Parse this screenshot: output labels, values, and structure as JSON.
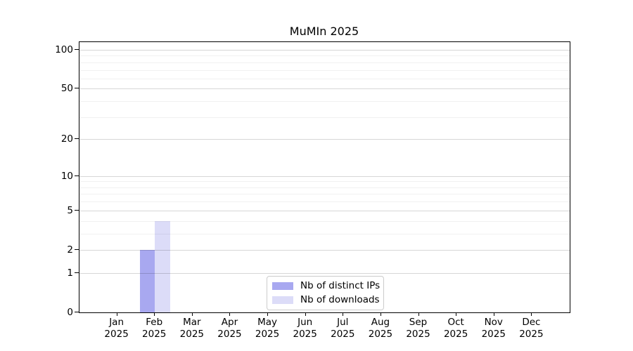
{
  "chart_data": {
    "type": "bar",
    "title": "MuMIn 2025",
    "year": "2025",
    "categories": [
      "Jan",
      "Feb",
      "Mar",
      "Apr",
      "May",
      "Jun",
      "Jul",
      "Aug",
      "Sep",
      "Oct",
      "Nov",
      "Dec"
    ],
    "series": [
      {
        "name": "Nb of distinct IPs",
        "color": "#a8a8f0",
        "values": [
          0,
          2,
          0,
          0,
          0,
          0,
          0,
          0,
          0,
          0,
          0,
          0
        ]
      },
      {
        "name": "Nb of downloads",
        "color": "#dcdcf8",
        "values": [
          0,
          4,
          0,
          0,
          0,
          0,
          0,
          0,
          0,
          0,
          0,
          0
        ]
      }
    ],
    "xlabel": "",
    "ylabel": "",
    "yscale": "log1p",
    "ylim": [
      0,
      115
    ],
    "yticks_major": [
      0,
      1,
      2,
      5,
      10,
      20,
      50,
      100
    ],
    "yticks_minor": [
      3,
      4,
      6,
      7,
      8,
      9,
      30,
      40,
      60,
      70,
      80,
      90
    ],
    "grid": "horizontal",
    "legend_position": "lower center",
    "colors": {
      "axis": "#000000",
      "major_grid": "#d6d6d6",
      "minor_grid": "#efefef",
      "background": "#ffffff"
    }
  }
}
